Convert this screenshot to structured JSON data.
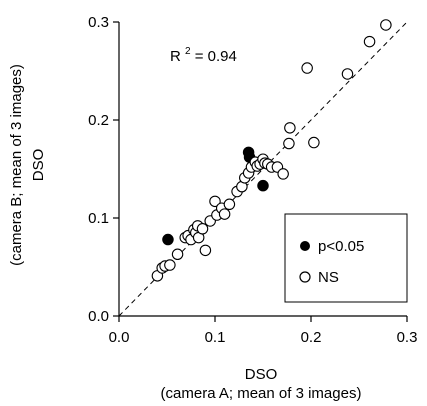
{
  "chart_data": {
    "type": "scatter",
    "xlabel": "DSO",
    "xlabel_sub": "(camera A; mean of 3 images)",
    "ylabel": "DSO",
    "ylabel_sub": "(camera B; mean of 3 images)",
    "xlim": [
      0,
      0.3
    ],
    "ylim": [
      0,
      0.3
    ],
    "xticks": [
      "0.0",
      "0.1",
      "0.2",
      "0.3"
    ],
    "yticks": [
      "0.0",
      "0.1",
      "0.2",
      "0.3"
    ],
    "grid": false,
    "reference_line": "y = x (dashed)",
    "annotation": {
      "prefix": "R",
      "superscript": "2",
      "suffix": " = 0.94"
    },
    "legend_position": "bottom-right",
    "series": [
      {
        "name": "p<0.05",
        "marker": "filled-circle",
        "points": [
          [
            0.051,
            0.078
          ],
          [
            0.135,
            0.167
          ],
          [
            0.136,
            0.162
          ],
          [
            0.15,
            0.133
          ]
        ]
      },
      {
        "name": "NS",
        "marker": "open-circle",
        "points": [
          [
            0.04,
            0.041
          ],
          [
            0.045,
            0.049
          ],
          [
            0.048,
            0.051
          ],
          [
            0.053,
            0.052
          ],
          [
            0.061,
            0.063
          ],
          [
            0.069,
            0.08
          ],
          [
            0.072,
            0.082
          ],
          [
            0.075,
            0.078
          ],
          [
            0.078,
            0.088
          ],
          [
            0.08,
            0.085
          ],
          [
            0.082,
            0.092
          ],
          [
            0.083,
            0.08
          ],
          [
            0.087,
            0.089
          ],
          [
            0.09,
            0.067
          ],
          [
            0.095,
            0.097
          ],
          [
            0.1,
            0.117
          ],
          [
            0.102,
            0.103
          ],
          [
            0.107,
            0.11
          ],
          [
            0.11,
            0.104
          ],
          [
            0.115,
            0.114
          ],
          [
            0.123,
            0.127
          ],
          [
            0.128,
            0.132
          ],
          [
            0.131,
            0.141
          ],
          [
            0.135,
            0.146
          ],
          [
            0.138,
            0.152
          ],
          [
            0.142,
            0.157
          ],
          [
            0.144,
            0.153
          ],
          [
            0.147,
            0.155
          ],
          [
            0.15,
            0.16
          ],
          [
            0.152,
            0.156
          ],
          [
            0.155,
            0.155
          ],
          [
            0.159,
            0.152
          ],
          [
            0.165,
            0.152
          ],
          [
            0.171,
            0.145
          ],
          [
            0.177,
            0.176
          ],
          [
            0.178,
            0.192
          ],
          [
            0.196,
            0.253
          ],
          [
            0.203,
            0.177
          ],
          [
            0.238,
            0.247
          ],
          [
            0.261,
            0.28
          ],
          [
            0.278,
            0.297
          ]
        ]
      }
    ]
  }
}
